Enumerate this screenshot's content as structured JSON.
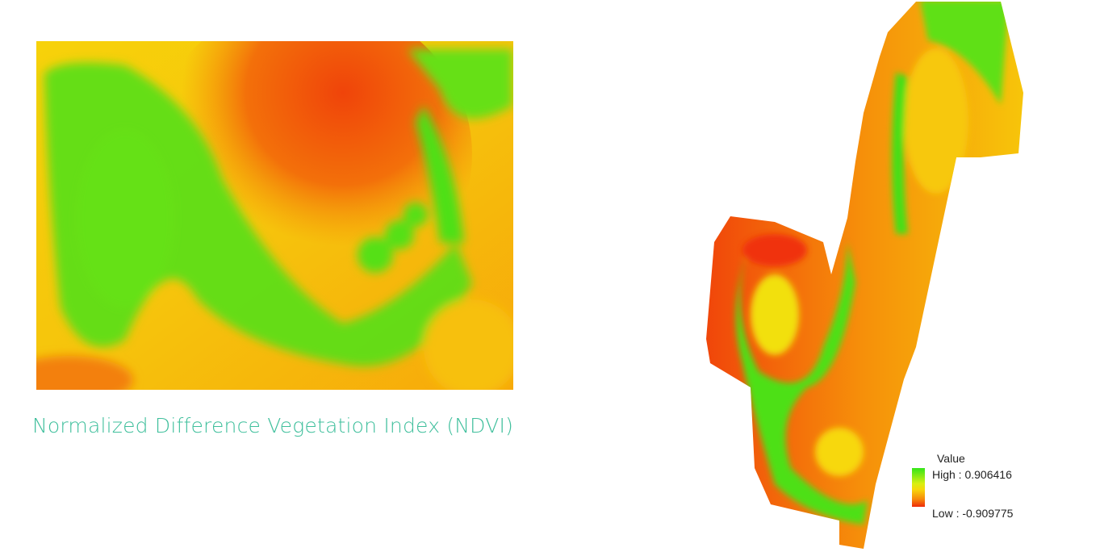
{
  "caption": "Normalized Difference Vegetation Index (NDVI)",
  "legend": {
    "title": "Value",
    "high": "High : 0.906416",
    "low": "Low : -0.909775",
    "colors": {
      "high": "#33e51a",
      "mid": "#f7e00a",
      "low": "#ee2a0a"
    }
  },
  "colors": {
    "caption": "#3fbf9c"
  }
}
